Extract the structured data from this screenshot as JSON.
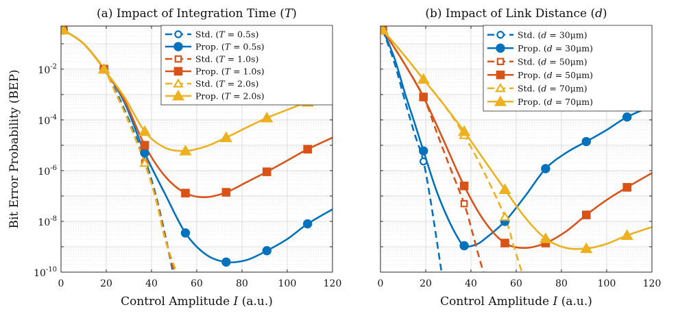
{
  "chart_data": [
    {
      "type": "line",
      "id": "a",
      "title": "(a) Impact of Integration Time (T)",
      "xlabel": "Control Amplitude I (a.u.)",
      "ylabel": "Bit Error Probability (BEP)",
      "yscale": "log",
      "xlim": [
        0,
        120
      ],
      "ylim": [
        1e-10,
        0.5
      ],
      "x_ticks": [
        0,
        20,
        40,
        60,
        80,
        100,
        120
      ],
      "y_ticks": [
        {
          "value": 0.01,
          "base": "10",
          "exp": "-2"
        },
        {
          "value": 0.0001,
          "base": "10",
          "exp": "-4"
        },
        {
          "value": 1e-06,
          "base": "10",
          "exp": "-6"
        },
        {
          "value": 1e-08,
          "base": "10",
          "exp": "-8"
        },
        {
          "value": 1e-10,
          "base": "10",
          "exp": "-10"
        }
      ],
      "grid": true,
      "legend_position": "top-right",
      "series": [
        {
          "name": "Std. (T = 0.5s)",
          "style": "dashed",
          "marker": "circle-open",
          "color": "#0072BD",
          "x": [
            1,
            19,
            37
          ],
          "y": [
            0.35,
            0.01,
            5e-06
          ],
          "curve_x": [
            1,
            10,
            19,
            25,
            30,
            37,
            42,
            46,
            49.5
          ],
          "curve_y": [
            0.35,
            0.1,
            0.01,
            0.001,
            0.0001,
            3e-06,
            1e-07,
            3e-09,
            1e-10
          ]
        },
        {
          "name": "Prop. (T = 0.5s)",
          "style": "solid",
          "marker": "circle-filled",
          "color": "#0072BD",
          "x": [
            1,
            19,
            37,
            55,
            73,
            91,
            109
          ],
          "y": [
            0.35,
            0.01,
            5e-06,
            3.5e-09,
            2.5e-10,
            7e-10,
            8e-09
          ],
          "curve_x": [
            1,
            10,
            19,
            28,
            37,
            46,
            55,
            64,
            73,
            82,
            91,
            100,
            109,
            120
          ],
          "curve_y": [
            0.35,
            0.1,
            0.01,
            0.0005,
            5e-06,
            1.2e-07,
            3.5e-09,
            5e-10,
            2.5e-10,
            3e-10,
            7e-10,
            2e-09,
            8e-09,
            3e-08
          ]
        },
        {
          "name": "Std. (T = 1.0s)",
          "style": "dashed",
          "marker": "square-open",
          "color": "#D95319",
          "x": [
            1,
            19,
            37
          ],
          "y": [
            0.35,
            0.01,
            2e-06
          ],
          "curve_x": [
            1,
            10,
            19,
            25,
            30,
            37,
            42,
            46,
            50
          ],
          "curve_y": [
            0.35,
            0.1,
            0.01,
            0.0008,
            8e-05,
            2e-06,
            8e-08,
            2.5e-09,
            1e-10
          ]
        },
        {
          "name": "Prop. (T = 1.0s)",
          "style": "solid",
          "marker": "square-filled",
          "color": "#D95319",
          "x": [
            1,
            19,
            37,
            55,
            73,
            91,
            109
          ],
          "y": [
            0.35,
            0.01,
            1e-05,
            1.3e-07,
            1.4e-07,
            9e-07,
            7e-06
          ],
          "curve_x": [
            1,
            10,
            19,
            28,
            37,
            46,
            55,
            64,
            73,
            82,
            91,
            100,
            109,
            120
          ],
          "curve_y": [
            0.35,
            0.1,
            0.01,
            0.0006,
            1e-05,
            6e-07,
            1.3e-07,
            9e-08,
            1.4e-07,
            3.5e-07,
            9e-07,
            2.5e-06,
            7e-06,
            2e-05
          ]
        },
        {
          "name": "Std. (T = 2.0s)",
          "style": "dashed",
          "marker": "triangle-open",
          "color": "#EDB120",
          "x": [
            1,
            19,
            37
          ],
          "y": [
            0.35,
            0.01,
            2e-06
          ],
          "curve_x": [
            1,
            10,
            19,
            25,
            30,
            37,
            42,
            46,
            51
          ],
          "curve_y": [
            0.35,
            0.1,
            0.01,
            0.0008,
            8e-05,
            2e-06,
            7e-08,
            2e-09,
            1e-10
          ]
        },
        {
          "name": "Prop. (T = 2.0s)",
          "style": "solid",
          "marker": "triangle-filled",
          "color": "#EDB120",
          "x": [
            1,
            19,
            37,
            55,
            73,
            91,
            109
          ],
          "y": [
            0.35,
            0.01,
            3.5e-05,
            6e-06,
            2e-05,
            0.00012,
            0.0005
          ],
          "curve_x": [
            1,
            10,
            19,
            28,
            37,
            46,
            55,
            64,
            73,
            82,
            91,
            100,
            109,
            120
          ],
          "curve_y": [
            0.35,
            0.1,
            0.01,
            0.0008,
            3.5e-05,
            8e-06,
            6e-06,
            9e-06,
            2e-05,
            5e-05,
            0.00012,
            0.00025,
            0.0005,
            0.001
          ]
        }
      ]
    },
    {
      "type": "line",
      "id": "b",
      "title": "(b) Impact of Link Distance (d)",
      "xlabel": "Control Amplitude I (a.u.)",
      "ylabel": "",
      "yscale": "log",
      "xlim": [
        0,
        120
      ],
      "ylim": [
        1e-10,
        0.5
      ],
      "x_ticks": [
        0,
        20,
        40,
        60,
        80,
        100,
        120
      ],
      "y_ticks": [],
      "grid": true,
      "legend_position": "top-right",
      "series": [
        {
          "name": "Std. (d = 30μm)",
          "style": "dashed",
          "marker": "circle-open",
          "color": "#0072BD",
          "x": [
            1,
            19
          ],
          "y": [
            0.35,
            2.3e-06
          ],
          "curve_x": [
            1,
            6,
            11,
            15,
            19,
            22,
            24.5,
            27
          ],
          "curve_y": [
            0.35,
            0.02,
            0.0005,
            3e-05,
            2.3e-06,
            8e-08,
            3e-09,
            1e-10
          ]
        },
        {
          "name": "Prop. (d = 30μm)",
          "style": "solid",
          "marker": "circle-filled",
          "color": "#0072BD",
          "x": [
            1,
            19,
            37,
            55,
            73,
            91,
            109
          ],
          "y": [
            0.35,
            6e-06,
            1.1e-09,
            1e-08,
            1.2e-06,
            1.4e-05,
            0.00013
          ],
          "curve_x": [
            1,
            6,
            11,
            15,
            19,
            24,
            28,
            33,
            37,
            42,
            46,
            55,
            64,
            73,
            82,
            91,
            100,
            109,
            120
          ],
          "curve_y": [
            0.35,
            0.03,
            0.001,
            8e-05,
            6e-06,
            2.5e-07,
            3e-08,
            3.5e-09,
            1.1e-09,
            1.2e-09,
            2e-09,
            1e-08,
            1e-07,
            1.2e-06,
            5e-06,
            1.4e-05,
            4e-05,
            0.00013,
            0.00035
          ]
        },
        {
          "name": "Std. (d = 50μm)",
          "style": "dashed",
          "marker": "square-open",
          "color": "#D95319",
          "x": [
            1,
            19,
            37
          ],
          "y": [
            0.35,
            0.0008,
            5e-08
          ],
          "curve_x": [
            1,
            10,
            19,
            25,
            30,
            37,
            40,
            43,
            45.5
          ],
          "curve_y": [
            0.35,
            0.02,
            0.0008,
            3e-05,
            2e-06,
            5e-08,
            6e-09,
            6e-10,
            1e-10
          ]
        },
        {
          "name": "Prop. (d = 50μm)",
          "style": "solid",
          "marker": "square-filled",
          "color": "#D95319",
          "x": [
            1,
            19,
            37,
            55,
            73,
            91,
            109
          ],
          "y": [
            0.35,
            0.0008,
            2.5e-07,
            1.4e-09,
            1.4e-09,
            1.8e-08,
            2.2e-07
          ],
          "curve_x": [
            1,
            10,
            19,
            28,
            37,
            46,
            55,
            64,
            73,
            82,
            91,
            100,
            109,
            120
          ],
          "curve_y": [
            0.35,
            0.02,
            0.0008,
            1.5e-05,
            2.5e-07,
            1e-08,
            1.4e-09,
            9e-10,
            1.4e-09,
            4e-09,
            1.8e-08,
            7e-08,
            2.2e-07,
            8e-07
          ]
        },
        {
          "name": "Std. (d = 70μm)",
          "style": "dashed",
          "marker": "triangle-open",
          "color": "#EDB120",
          "x": [
            1,
            19,
            37,
            55
          ],
          "y": [
            0.35,
            0.004,
            2.5e-05,
            1.5e-08
          ],
          "curve_x": [
            1,
            10,
            19,
            28,
            37,
            46,
            55,
            59,
            62.5
          ],
          "curve_y": [
            0.35,
            0.04,
            0.004,
            0.0004,
            2.5e-05,
            8e-07,
            1.5e-08,
            1e-09,
            1e-10
          ]
        },
        {
          "name": "Prop. (d = 70μm)",
          "style": "solid",
          "marker": "triangle-filled",
          "color": "#EDB120",
          "x": [
            1,
            19,
            37,
            55,
            73,
            91,
            109
          ],
          "y": [
            0.35,
            0.004,
            3.5e-05,
            1.8e-07,
            2.1e-09,
            8.5e-10,
            2.8e-09
          ],
          "curve_x": [
            1,
            10,
            19,
            28,
            37,
            46,
            55,
            64,
            73,
            82,
            91,
            100,
            109,
            120
          ],
          "curve_y": [
            0.35,
            0.04,
            0.004,
            0.0004,
            3.5e-05,
            2.5e-06,
            1.8e-07,
            1.4e-08,
            2.1e-09,
            9e-10,
            8.5e-10,
            1.3e-09,
            2.8e-09,
            6e-09
          ]
        }
      ]
    }
  ]
}
